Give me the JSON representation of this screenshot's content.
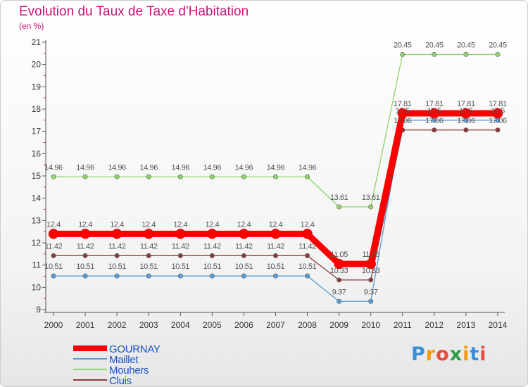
{
  "chart_data": {
    "type": "line",
    "title": "Evolution du Taux de Taxe d'Habitation",
    "subtitle": "(en %)",
    "xlabel": "",
    "ylabel": "",
    "x": [
      "2000",
      "2001",
      "2002",
      "2003",
      "2004",
      "2005",
      "2006",
      "2007",
      "2008",
      "2009",
      "2010",
      "2011",
      "2012",
      "2013",
      "2014"
    ],
    "ylim": [
      9,
      21
    ],
    "yticks": [
      9,
      10,
      11,
      12,
      13,
      14,
      15,
      16,
      17,
      18,
      19,
      20,
      21
    ],
    "grid": false,
    "legend_position": "bottom-left",
    "series": [
      {
        "name": "GOURNAY",
        "color": "#ff0000",
        "emphasis": true,
        "values": [
          12.4,
          12.4,
          12.4,
          12.4,
          12.4,
          12.4,
          12.4,
          12.4,
          12.4,
          11.05,
          11.05,
          17.81,
          17.81,
          17.81,
          17.81
        ],
        "labels": [
          "12.4",
          "12.4",
          "12.4",
          "12.4",
          "12.4",
          "12.4",
          "12.4",
          "12.4",
          "12.4",
          "11.05",
          "11.05",
          "17.81",
          "17.81",
          "17.81",
          "17.81"
        ]
      },
      {
        "name": "Maillet",
        "color": "#5b9bd5",
        "values": [
          10.51,
          10.51,
          10.51,
          10.51,
          10.51,
          10.51,
          10.51,
          10.51,
          10.51,
          9.37,
          9.37,
          17.5,
          17.5,
          17.5,
          17.5
        ],
        "labels": [
          "10.51",
          "10.51",
          "10.51",
          "10.51",
          "10.51",
          "10.51",
          "10.51",
          "10.51",
          "10.51",
          "9.37",
          "9.37",
          "17.5",
          "17.5",
          "17.5",
          "17.5"
        ]
      },
      {
        "name": "Mouhers",
        "color": "#8fd36b",
        "values": [
          14.96,
          14.96,
          14.96,
          14.96,
          14.96,
          14.96,
          14.96,
          14.96,
          14.96,
          13.61,
          13.61,
          20.45,
          20.45,
          20.45,
          20.45
        ],
        "labels": [
          "14.96",
          "14.96",
          "14.96",
          "14.96",
          "14.96",
          "14.96",
          "14.96",
          "14.96",
          "14.96",
          "13.61",
          "13.61",
          "20.45",
          "20.45",
          "20.45",
          "20.45"
        ]
      },
      {
        "name": "Cluis",
        "color": "#8b3a3a",
        "values": [
          11.42,
          11.42,
          11.42,
          11.42,
          11.42,
          11.42,
          11.42,
          11.42,
          11.42,
          10.33,
          10.33,
          17.06,
          17.06,
          17.06,
          17.06
        ],
        "labels": [
          "11.42",
          "11.42",
          "11.42",
          "11.42",
          "11.42",
          "11.42",
          "11.42",
          "11.42",
          "11.42",
          "10.33",
          "10.33",
          "17.06",
          "17.06",
          "17.06",
          "17.06"
        ]
      }
    ]
  },
  "brand": {
    "letters": [
      "P",
      "r",
      "o",
      "x",
      "i",
      "t",
      "i"
    ],
    "colors": [
      "#3a8fd8",
      "#f39c12",
      "#e84c3d",
      "#2e9e48",
      "#f39c12",
      "#3a8fd8",
      "#e84c3d"
    ]
  },
  "colors": {
    "title": "#c8157a",
    "axis": "#555555"
  }
}
